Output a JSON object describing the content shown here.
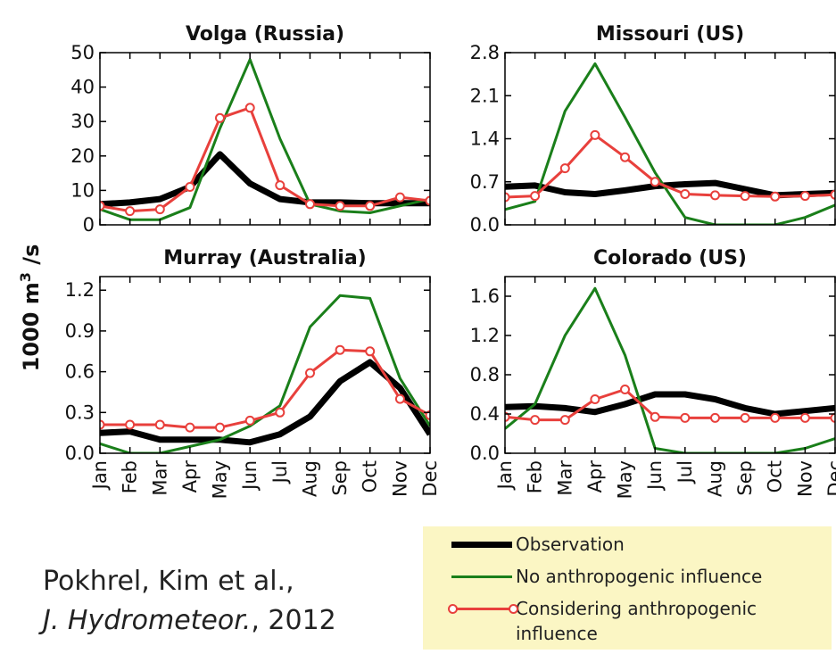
{
  "chart_data": [
    {
      "type": "line",
      "title": "Volga (Russia)",
      "categories": [
        "Jan",
        "Feb",
        "Mar",
        "Apr",
        "May",
        "Jun",
        "Jul",
        "Aug",
        "Sep",
        "Oct",
        "Nov",
        "Dec"
      ],
      "ylim": [
        0,
        50
      ],
      "yticks": [
        "0",
        "10",
        "20",
        "30",
        "40",
        "50"
      ],
      "series": [
        {
          "name": "Observation",
          "values": [
            6,
            6.5,
            7.5,
            11,
            20.5,
            12,
            7.5,
            6.5,
            6.5,
            6.3,
            6.3,
            6.3
          ]
        },
        {
          "name": "No anthropogenic influence",
          "values": [
            4.5,
            1.5,
            1.5,
            5,
            28,
            48,
            25,
            6,
            4,
            3.5,
            5.5,
            7.5
          ]
        },
        {
          "name": "Considering anthropogenic influence",
          "values": [
            5.5,
            4,
            4.5,
            11,
            31,
            34,
            11.5,
            6,
            5.5,
            5.5,
            8,
            7
          ]
        }
      ]
    },
    {
      "type": "line",
      "title": "Missouri (US)",
      "categories": [
        "Jan",
        "Feb",
        "Mar",
        "Apr",
        "May",
        "Jun",
        "Jul",
        "Aug",
        "Sep",
        "Oct",
        "Nov",
        "Dec"
      ],
      "ylim": [
        0,
        2.8
      ],
      "yticks": [
        "0.0",
        "0.7",
        "1.4",
        "2.1",
        "2.8"
      ],
      "series": [
        {
          "name": "Observation",
          "values": [
            0.62,
            0.64,
            0.53,
            0.5,
            0.56,
            0.63,
            0.66,
            0.68,
            0.58,
            0.48,
            0.5,
            0.52
          ]
        },
        {
          "name": "No anthropogenic influence",
          "values": [
            0.25,
            0.38,
            1.85,
            2.62,
            1.75,
            0.85,
            0.12,
            0.0,
            0.0,
            0.0,
            0.12,
            0.32
          ]
        },
        {
          "name": "Considering anthropogenic influence",
          "values": [
            0.45,
            0.47,
            0.92,
            1.46,
            1.1,
            0.7,
            0.5,
            0.48,
            0.47,
            0.46,
            0.47,
            0.49
          ]
        }
      ]
    },
    {
      "type": "line",
      "title": "Murray (Australia)",
      "categories": [
        "Jan",
        "Feb",
        "Mar",
        "Apr",
        "May",
        "Jun",
        "Jul",
        "Aug",
        "Sep",
        "Oct",
        "Nov",
        "Dec"
      ],
      "ylim": [
        0,
        1.3
      ],
      "yticks": [
        "0.0",
        "0.3",
        "0.6",
        "0.9",
        "1.2"
      ],
      "series": [
        {
          "name": "Observation",
          "values": [
            0.15,
            0.16,
            0.1,
            0.1,
            0.1,
            0.08,
            0.14,
            0.27,
            0.53,
            0.67,
            0.48,
            0.14
          ]
        },
        {
          "name": "No anthropogenic influence",
          "values": [
            0.07,
            0.0,
            0.0,
            0.05,
            0.1,
            0.2,
            0.35,
            0.93,
            1.16,
            1.14,
            0.55,
            0.2
          ]
        },
        {
          "name": "Considering anthropogenic influence",
          "values": [
            0.21,
            0.21,
            0.21,
            0.19,
            0.19,
            0.24,
            0.3,
            0.59,
            0.76,
            0.75,
            0.4,
            0.28
          ]
        }
      ]
    },
    {
      "type": "line",
      "title": "Colorado (US)",
      "categories": [
        "Jan",
        "Feb",
        "Mar",
        "Apr",
        "May",
        "Jun",
        "Jul",
        "Aug",
        "Sep",
        "Oct",
        "Nov",
        "Dec"
      ],
      "ylim": [
        0,
        1.8
      ],
      "yticks": [
        "0.0",
        "0.4",
        "0.8",
        "1.2",
        "1.6"
      ],
      "series": [
        {
          "name": "Observation",
          "values": [
            0.47,
            0.48,
            0.46,
            0.42,
            0.5,
            0.6,
            0.6,
            0.55,
            0.46,
            0.4,
            0.43,
            0.46
          ]
        },
        {
          "name": "No anthropogenic influence",
          "values": [
            0.25,
            0.5,
            1.2,
            1.68,
            1.0,
            0.05,
            0.0,
            0.0,
            0.0,
            0.0,
            0.05,
            0.15
          ]
        },
        {
          "name": "Considering anthropogenic influence",
          "values": [
            0.37,
            0.34,
            0.34,
            0.55,
            0.65,
            0.37,
            0.36,
            0.36,
            0.36,
            0.36,
            0.36,
            0.36
          ]
        }
      ]
    }
  ],
  "ylabel": {
    "main": "1000 m",
    "sup": "3",
    "tail": " /s"
  },
  "colors": {
    "observation": "#000000",
    "no_anthro": "#1a7f1a",
    "considering": "#e8403c"
  },
  "legend": {
    "items": [
      {
        "label": "Observation"
      },
      {
        "label": "No anthropogenic influence"
      },
      {
        "label": "Considering anthropogenic influence"
      }
    ]
  },
  "citation": {
    "line1": "Pokhrel, Kim et al.,",
    "line2_journal": "J. Hydrometeor.",
    "line2_year": ", 2012"
  }
}
